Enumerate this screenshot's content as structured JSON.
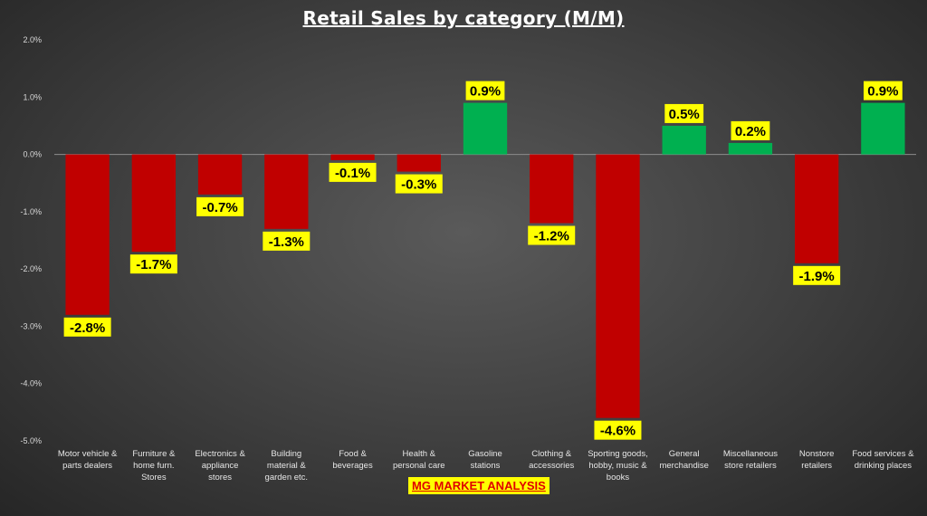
{
  "chart_data": {
    "type": "bar",
    "title": "Retail Sales by category (M/M)",
    "xlabel": "",
    "ylabel": "",
    "ylim": [
      -5.0,
      2.0
    ],
    "grid": false,
    "legend": "none",
    "y_ticks": [
      "2.0%",
      "1.0%",
      "0.0%",
      "-1.0%",
      "-2.0%",
      "-3.0%",
      "-4.0%",
      "-5.0%"
    ],
    "y_tick_values": [
      2.0,
      1.0,
      0.0,
      -1.0,
      -2.0,
      -3.0,
      -4.0,
      -5.0
    ],
    "categories": [
      "Motor vehicle & parts dealers",
      "Furniture & home furn. Stores",
      "Electronics & appliance stores",
      "Building material & garden etc.",
      "Food & beverages",
      "Health & personal care",
      "Gasoline stations",
      "Clothing & accessories",
      "Sporting goods, hobby, music & books",
      "General merchandise",
      "Miscellaneous store retailers",
      "Nonstore retailers",
      "Food services & drinking places"
    ],
    "category_lines": [
      [
        "Motor vehicle &",
        "parts dealers"
      ],
      [
        "Furniture &",
        "home furn.",
        "Stores"
      ],
      [
        "Electronics &",
        "appliance",
        "stores"
      ],
      [
        "Building",
        "material &",
        "garden etc."
      ],
      [
        "Food &",
        "beverages"
      ],
      [
        "Health &",
        "personal care"
      ],
      [
        "Gasoline",
        "stations"
      ],
      [
        "Clothing &",
        "accessories"
      ],
      [
        "Sporting goods,",
        "hobby, music &",
        "books"
      ],
      [
        "General",
        "merchandise"
      ],
      [
        "Miscellaneous",
        "store retailers"
      ],
      [
        "Nonstore",
        "retailers"
      ],
      [
        "Food services &",
        "drinking places"
      ]
    ],
    "values": [
      -2.8,
      -1.7,
      -0.7,
      -1.3,
      -0.1,
      -0.3,
      0.9,
      -1.2,
      -4.6,
      0.5,
      0.2,
      -1.9,
      0.9
    ],
    "data_labels": [
      "-2.8%",
      "-1.7%",
      "-0.7%",
      "-1.3%",
      "-0.1%",
      "-0.3%",
      "0.9%",
      "-1.2%",
      "-4.6%",
      "0.5%",
      "0.2%",
      "-1.9%",
      "0.9%"
    ],
    "colors": {
      "positive": "#00b050",
      "negative": "#c00000",
      "label_bg": "#ffff00",
      "label_text": "#000000"
    }
  },
  "footer": {
    "label": "MG MARKET ANALYSIS"
  }
}
